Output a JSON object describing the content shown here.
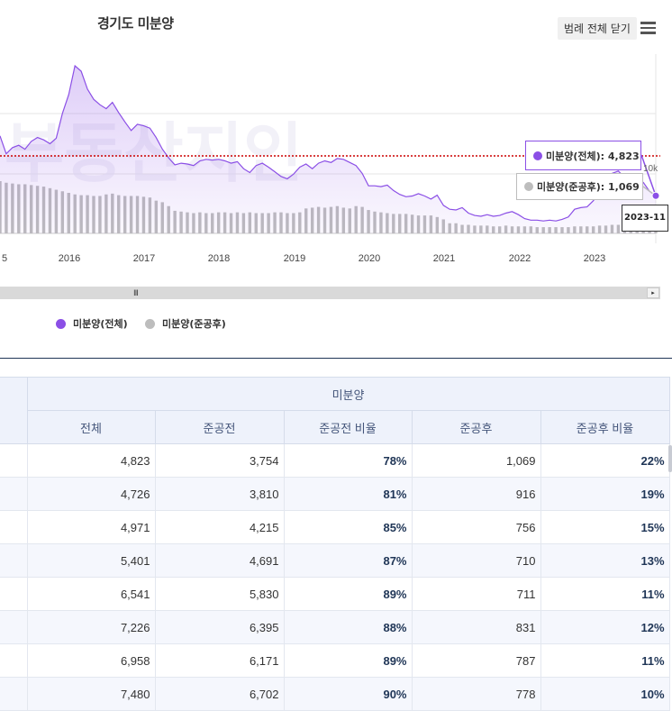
{
  "chart": {
    "title": "경기도 미분양",
    "legend_close_label": "범례 전체 닫기",
    "menu_icon": "hamburger-menu-icon",
    "scroll_grip": "III",
    "scroll_arrow": "▸",
    "watermark": "부동산지인",
    "legend": [
      {
        "name": "미분양(전체)",
        "color": "#8b4fe6"
      },
      {
        "name": "미분양(준공후)",
        "color": "#bdbdbd"
      }
    ],
    "tooltips": {
      "total": {
        "label": "미분양(전체): 4,823",
        "color": "#8b4fe6"
      },
      "completed": {
        "label": "미분양(준공후): 1,069",
        "color": "#bdbdbd"
      },
      "date": "2023-11"
    }
  },
  "chart_data": {
    "type": "area",
    "x_ticks": [
      "5",
      "2016",
      "2017",
      "2018",
      "2019",
      "2020",
      "2021",
      "2022",
      "2023"
    ],
    "y_tick_labels": [
      "10k"
    ],
    "reference_line_value": 4823,
    "series": [
      {
        "name": "미분양(전체)",
        "type": "area",
        "color": "#8b4fe6",
        "x": [
          "2015-02",
          "2015-03",
          "2015-04",
          "2015-05",
          "2015-06",
          "2015-07",
          "2015-08",
          "2015-09",
          "2015-10",
          "2015-11",
          "2015-12",
          "2016-01",
          "2016-02",
          "2016-03",
          "2016-04",
          "2016-05",
          "2016-06",
          "2016-07",
          "2016-08",
          "2016-09",
          "2016-10",
          "2016-11",
          "2016-12",
          "2017-01",
          "2017-02",
          "2017-03",
          "2017-04",
          "2017-05",
          "2017-06",
          "2017-07",
          "2017-08",
          "2017-09",
          "2017-10",
          "2017-11",
          "2017-12",
          "2018-01",
          "2018-02",
          "2018-03",
          "2018-04",
          "2018-05",
          "2018-06",
          "2018-07",
          "2018-08",
          "2018-09",
          "2018-10",
          "2018-11",
          "2018-12",
          "2019-01",
          "2019-02",
          "2019-03",
          "2019-04",
          "2019-05",
          "2019-06",
          "2019-07",
          "2019-08",
          "2019-09",
          "2019-10",
          "2019-11",
          "2019-12",
          "2020-01",
          "2020-02",
          "2020-03",
          "2020-04",
          "2020-05",
          "2020-06",
          "2020-07",
          "2020-08",
          "2020-09",
          "2020-10",
          "2020-11",
          "2020-12",
          "2021-01",
          "2021-02",
          "2021-03",
          "2021-04",
          "2021-05",
          "2021-06",
          "2021-07",
          "2021-08",
          "2021-09",
          "2021-10",
          "2021-11",
          "2021-12",
          "2022-01",
          "2022-02",
          "2022-03",
          "2022-04",
          "2022-05",
          "2022-06",
          "2022-07",
          "2022-08",
          "2022-09",
          "2022-10",
          "2022-11",
          "2022-12",
          "2023-01",
          "2023-02",
          "2023-03",
          "2023-04",
          "2023-05",
          "2023-06",
          "2023-07",
          "2023-08",
          "2023-09",
          "2023-10",
          "2023-11"
        ],
        "values": [
          12500,
          10200,
          11000,
          11300,
          10800,
          11800,
          12300,
          12000,
          11500,
          12200,
          15400,
          17800,
          21500,
          20800,
          18500,
          17200,
          16500,
          16000,
          16800,
          15500,
          14300,
          13200,
          14000,
          13800,
          13500,
          12300,
          10800,
          9700,
          8800,
          9000,
          8900,
          8700,
          9300,
          9500,
          9400,
          9500,
          9300,
          9000,
          9200,
          8300,
          7800,
          8700,
          9000,
          8500,
          7900,
          7300,
          7000,
          7600,
          8500,
          8900,
          8300,
          9000,
          9300,
          9100,
          9600,
          9500,
          9100,
          8700,
          7700,
          6100,
          6100,
          6000,
          6200,
          5500,
          5000,
          4700,
          4800,
          5100,
          4800,
          4400,
          4900,
          3600,
          3100,
          3000,
          3300,
          2600,
          2300,
          2200,
          2400,
          2200,
          2300,
          2600,
          2800,
          2400,
          1900,
          1700,
          1700,
          1600,
          1700,
          1600,
          1800,
          2100,
          3100,
          3300,
          3400,
          4200,
          5400,
          6600,
          7700,
          8000,
          7200,
          7500,
          6900,
          6540,
          5400,
          4823
        ]
      },
      {
        "name": "미분양(준공후)",
        "type": "bar",
        "color": "#bdbdbd",
        "values": [
          6700,
          6500,
          6400,
          6300,
          6300,
          6200,
          6100,
          6000,
          5800,
          5600,
          5400,
          5200,
          5000,
          4900,
          4900,
          4800,
          4800,
          5000,
          5100,
          4900,
          4800,
          4800,
          4800,
          4700,
          4600,
          4200,
          4000,
          3500,
          2900,
          2800,
          2700,
          2600,
          2700,
          2600,
          2600,
          2700,
          2700,
          2600,
          2700,
          2600,
          2700,
          2600,
          2600,
          2600,
          2700,
          2700,
          2600,
          2600,
          2700,
          3200,
          3300,
          3400,
          3300,
          3400,
          3500,
          3300,
          3200,
          3500,
          3400,
          3000,
          2800,
          2700,
          2600,
          2500,
          2500,
          2500,
          2400,
          2300,
          2300,
          2300,
          2100,
          1800,
          1300,
          1300,
          1100,
          1100,
          1000,
          1000,
          1000,
          900,
          900,
          1000,
          900,
          900,
          900,
          900,
          800,
          800,
          800,
          800,
          800,
          800,
          900,
          900,
          900,
          900,
          1000,
          1000,
          1100,
          1100,
          1100,
          1100,
          1000,
          1000,
          1000,
          1069
        ]
      }
    ]
  },
  "table": {
    "group_header": "미분양",
    "columns": [
      "전체",
      "준공전",
      "준공전 비율",
      "준공후",
      "준공후 비율"
    ],
    "rows": [
      [
        "4,823",
        "3,754",
        "78%",
        "1,069",
        "22%"
      ],
      [
        "4,726",
        "3,810",
        "81%",
        "916",
        "19%"
      ],
      [
        "4,971",
        "4,215",
        "85%",
        "756",
        "15%"
      ],
      [
        "5,401",
        "4,691",
        "87%",
        "710",
        "13%"
      ],
      [
        "6,541",
        "5,830",
        "89%",
        "711",
        "11%"
      ],
      [
        "7,226",
        "6,395",
        "88%",
        "831",
        "12%"
      ],
      [
        "6,958",
        "6,171",
        "89%",
        "787",
        "11%"
      ],
      [
        "7,480",
        "6,702",
        "90%",
        "778",
        "10%"
      ]
    ]
  }
}
